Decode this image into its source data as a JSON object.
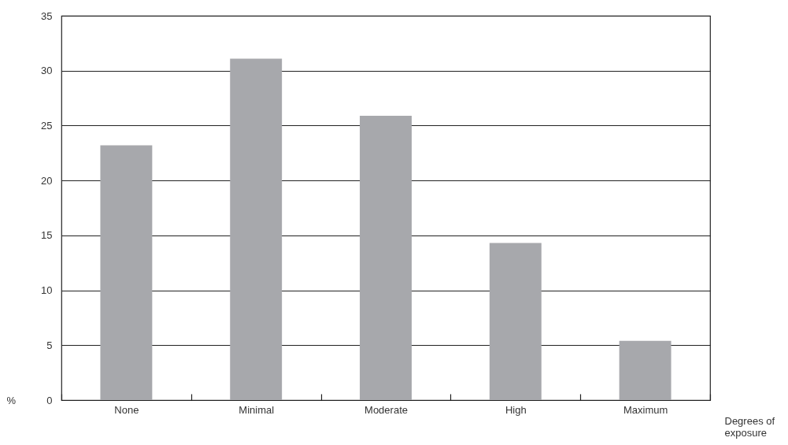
{
  "chart_data": {
    "type": "bar",
    "xlabel": "Degrees of exposure",
    "ylabel": "%",
    "categories": [
      "None",
      "Minimal",
      "Moderate",
      "High",
      "Maximum"
    ],
    "values": [
      23.2,
      31.1,
      25.9,
      14.3,
      5.4
    ],
    "color": "#a7a8ac",
    "ylim": [
      0,
      35
    ],
    "yticks": [
      0,
      5,
      10,
      15,
      20,
      25,
      30,
      35
    ],
    "grid": "y"
  }
}
